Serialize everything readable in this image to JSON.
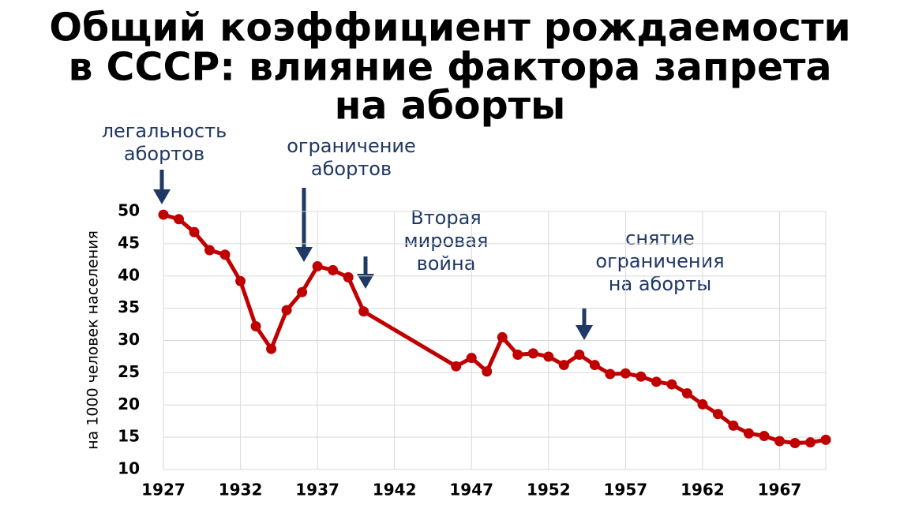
{
  "chart_data": {
    "type": "line",
    "title_lines": [
      "Общий коэффициент рождаемости",
      "в СССР: влияние фактора запрета",
      "на аборты"
    ],
    "y_label": "на 1000 человек населения",
    "annotations": [
      {
        "lines": [
          "легальность",
          "абортов"
        ]
      },
      {
        "lines": [
          "ограничение",
          "абортов"
        ]
      },
      {
        "lines": [
          "Вторая",
          "мировая",
          "война"
        ]
      },
      {
        "lines": [
          "снятие",
          "ограничения",
          "на аборты"
        ]
      }
    ],
    "x": [
      1927,
      1928,
      1929,
      1930,
      1931,
      1932,
      1933,
      1934,
      1935,
      1936,
      1937,
      1938,
      1939,
      1940,
      1946,
      1947,
      1948,
      1949,
      1950,
      1951,
      1952,
      1953,
      1954,
      1955,
      1956,
      1957,
      1958,
      1959,
      1960,
      1961,
      1962,
      1963,
      1964,
      1965,
      1966,
      1967,
      1968,
      1969,
      1970
    ],
    "series": [
      {
        "color": "#c00000",
        "values": [
          49.5,
          48.8,
          46.8,
          44.0,
          43.3,
          39.2,
          32.2,
          28.7,
          34.7,
          37.5,
          41.5,
          40.9,
          39.8,
          34.5,
          26.0,
          27.3,
          25.2,
          30.5,
          27.8,
          28.0,
          27.5,
          26.2,
          27.8,
          26.2,
          24.8,
          24.9,
          24.4,
          23.6,
          23.2,
          21.8,
          20.1,
          18.6,
          16.8,
          15.6,
          15.2,
          14.4,
          14.1,
          14.2,
          14.6
        ]
      }
    ],
    "xlim": [
      1927,
      1970
    ],
    "xticks": [
      1927,
      1932,
      1937,
      1942,
      1947,
      1952,
      1957,
      1962,
      1967
    ],
    "ylim": [
      10,
      50
    ],
    "yticks": [
      10,
      15,
      20,
      25,
      30,
      35,
      40,
      45,
      50
    ],
    "grid": true
  }
}
